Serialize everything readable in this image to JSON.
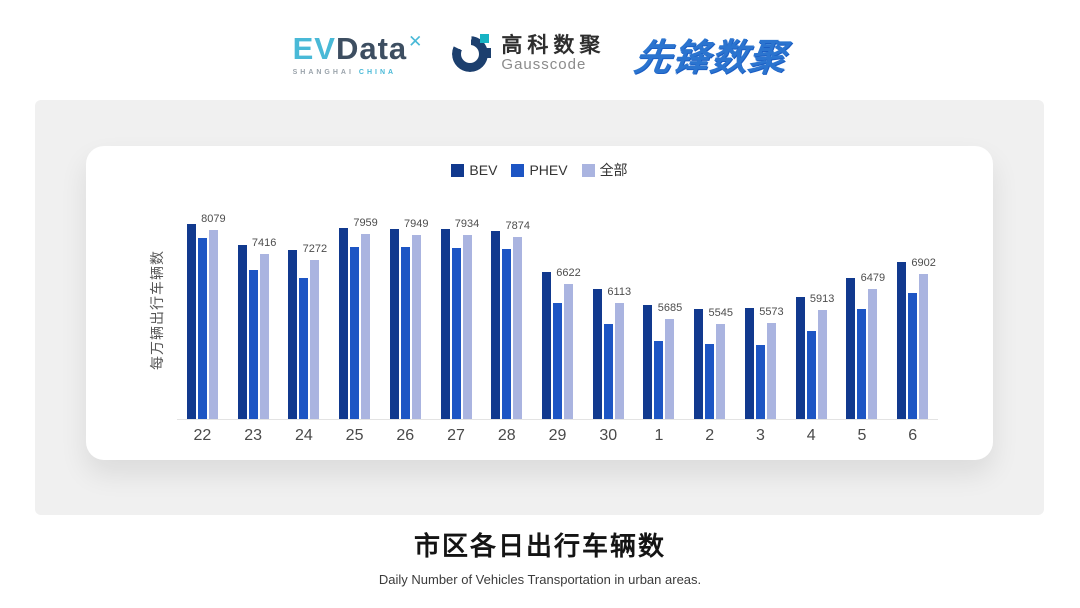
{
  "header": {
    "logos": {
      "evdata": {
        "ev": "EV",
        "data": "Data",
        "mark": "✕",
        "sub_left": "SHANGHAI",
        "sub_right": "CHINA"
      },
      "gausscode": {
        "cn": "高科数聚",
        "en": "Gausscode"
      },
      "xianfeng": {
        "text": "先锋数聚"
      }
    }
  },
  "chart_data": {
    "type": "bar",
    "title": "市区各日出行车辆数",
    "subtitle": "Daily Number of Vehicles Transportation in urban areas.",
    "ylabel": "每万辆出行车辆数",
    "xlabel": "",
    "categories": [
      "22",
      "23",
      "24",
      "25",
      "26",
      "27",
      "28",
      "29",
      "30",
      "1",
      "2",
      "3",
      "4",
      "5",
      "6"
    ],
    "series": [
      {
        "name": "BEV",
        "color": "#11398e",
        "values": [
          8220,
          7670,
          7540,
          8120,
          8095,
          8110,
          8035,
          6940,
          6480,
          6070,
          5940,
          5985,
          6265,
          6790,
          7215
        ]
      },
      {
        "name": "PHEV",
        "color": "#1d55c4",
        "values": [
          7855,
          7005,
          6785,
          7625,
          7615,
          7580,
          7555,
          6120,
          5550,
          5100,
          5015,
          4990,
          5365,
          5960,
          6385
        ]
      },
      {
        "name": "全部",
        "color": "#aab4e0",
        "values": [
          8079,
          7416,
          7272,
          7959,
          7949,
          7934,
          7874,
          6622,
          6113,
          5685,
          5545,
          5573,
          5913,
          6479,
          6902
        ],
        "data_labels": [
          8079,
          7416,
          7272,
          7959,
          7949,
          7934,
          7874,
          6622,
          6113,
          5685,
          5545,
          5573,
          5913,
          6479,
          6902
        ]
      }
    ],
    "ylim": [
      3000,
      8500
    ],
    "grid": false,
    "legend_position": "top"
  },
  "colors": {
    "panel_bg": "#f0f0f0",
    "card_bg": "#ffffff",
    "axis_line": "#e3e3e3",
    "evdata_cyan": "#49b9d7",
    "evdata_slate": "#3d4e61",
    "gauss_navy": "#1c3f6e",
    "gauss_teal": "#17b3c4",
    "xianfeng_blue": "#2b74cf"
  }
}
